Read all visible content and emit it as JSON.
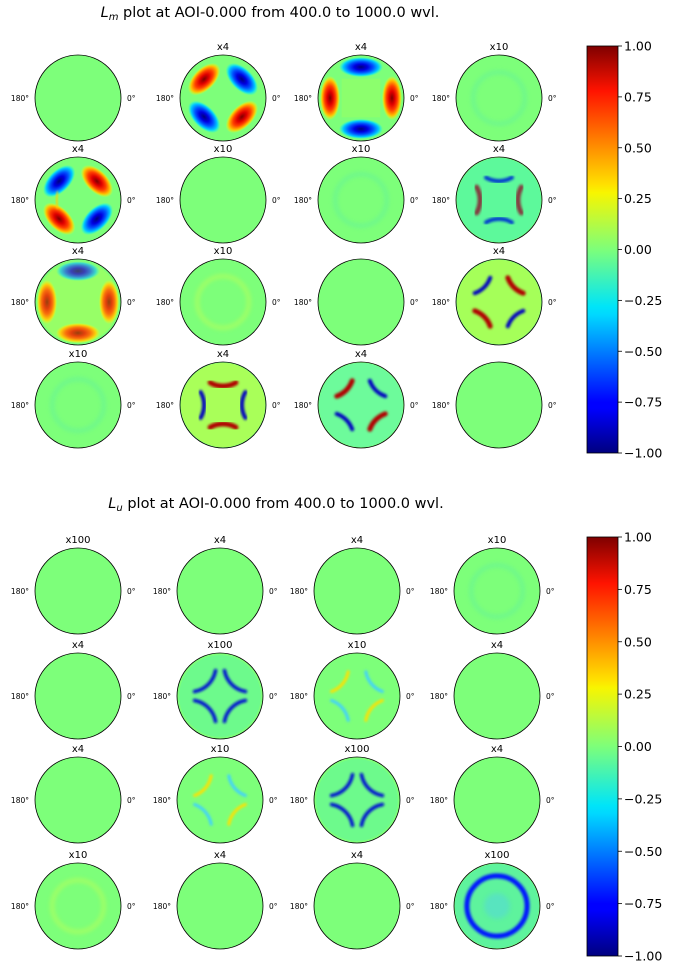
{
  "figure": {
    "plots": [
      {
        "title_symbol": "L",
        "title_subscript": "m",
        "title_text": " plot at AOI-0.000 from 400.0 to 1000.0 wvl.",
        "grid": [
          [
            {
              "label": "",
              "pattern": "flat"
            },
            {
              "label": "x4",
              "pattern": "lobesDiag"
            },
            {
              "label": "x4",
              "pattern": "lobesAxis"
            },
            {
              "label": "x10",
              "pattern": "faintRing"
            }
          ],
          [
            {
              "label": "x4",
              "pattern": "lobesDiagNeg"
            },
            {
              "label": "x10",
              "pattern": "flat"
            },
            {
              "label": "x10",
              "pattern": "faintRing"
            },
            {
              "label": "x4",
              "pattern": "arcsAxis"
            }
          ],
          [
            {
              "label": "x4",
              "pattern": "lobesAxisV"
            },
            {
              "label": "x10",
              "pattern": "faintRingYellow"
            },
            {
              "label": "",
              "pattern": "flat"
            },
            {
              "label": "x4",
              "pattern": "arcsDiag"
            }
          ],
          [
            {
              "label": "x10",
              "pattern": "faintRing"
            },
            {
              "label": "x4",
              "pattern": "arcsAxisYellow"
            },
            {
              "label": "x4",
              "pattern": "arcsDiagYellow"
            },
            {
              "label": "",
              "pattern": "flat"
            }
          ]
        ]
      },
      {
        "title_symbol": "L",
        "title_subscript": "u",
        "title_text": " plot at AOI-0.000 from 400.0 to 1000.0 wvl.",
        "grid": [
          [
            {
              "label": "x100",
              "pattern": "flat"
            },
            {
              "label": "x4",
              "pattern": "flat"
            },
            {
              "label": "x4",
              "pattern": "flat"
            },
            {
              "label": "x10",
              "pattern": "faintRing"
            }
          ],
          [
            {
              "label": "x4",
              "pattern": "flat"
            },
            {
              "label": "x100",
              "pattern": "blueRingBroken"
            },
            {
              "label": "x10",
              "pattern": "yellowRingBroken"
            },
            {
              "label": "x4",
              "pattern": "flat"
            }
          ],
          [
            {
              "label": "x4",
              "pattern": "flat"
            },
            {
              "label": "x10",
              "pattern": "yellowRingBroken"
            },
            {
              "label": "x100",
              "pattern": "blueRingBroken"
            },
            {
              "label": "x4",
              "pattern": "flat"
            }
          ],
          [
            {
              "label": "x10",
              "pattern": "faintRingYellow"
            },
            {
              "label": "x4",
              "pattern": "flat"
            },
            {
              "label": "x4",
              "pattern": "flat"
            },
            {
              "label": "x100",
              "pattern": "blueRingFull"
            }
          ]
        ]
      }
    ],
    "left_tick": "180°",
    "right_tick": "0°",
    "colorbar": {
      "colormap": "jet",
      "ticks": [
        "1.00",
        "0.75",
        "0.50",
        "0.25",
        "0.00",
        "−0.25",
        "−0.50",
        "−0.75",
        "−1.00"
      ]
    }
  },
  "chart_data": [
    {
      "type": "heatmap",
      "title": "L_m plot at AOI-0.000 from 400.0 to 1000.0 wvl.",
      "subplot_titles": [
        [
          "",
          "x4",
          "x4",
          "x10"
        ],
        [
          "x4",
          "x10",
          "x10",
          "x4"
        ],
        [
          "x4",
          "x10",
          "",
          "x4"
        ],
        [
          "x10",
          "x4",
          "x4",
          ""
        ]
      ],
      "angular_ticks": [
        "180°",
        "0°"
      ],
      "colorbar": {
        "range": [
          -1.0,
          1.0
        ],
        "ticks": [
          1.0,
          0.75,
          0.5,
          0.25,
          0.0,
          -0.25,
          -0.5,
          -0.75,
          -1.0
        ],
        "colormap": "jet"
      }
    },
    {
      "type": "heatmap",
      "title": "L_u plot at AOI-0.000 from 400.0 to 1000.0 wvl.",
      "subplot_titles": [
        [
          "x100",
          "x4",
          "x4",
          "x10"
        ],
        [
          "x4",
          "x100",
          "x10",
          "x4"
        ],
        [
          "x4",
          "x10",
          "x100",
          "x4"
        ],
        [
          "x10",
          "x4",
          "x4",
          "x100"
        ]
      ],
      "angular_ticks": [
        "180°",
        "0°"
      ],
      "colorbar": {
        "range": [
          -1.0,
          1.0
        ],
        "ticks": [
          1.0,
          0.75,
          0.5,
          0.25,
          0.0,
          -0.25,
          -0.5,
          -0.75,
          -1.0
        ],
        "colormap": "jet"
      }
    }
  ]
}
